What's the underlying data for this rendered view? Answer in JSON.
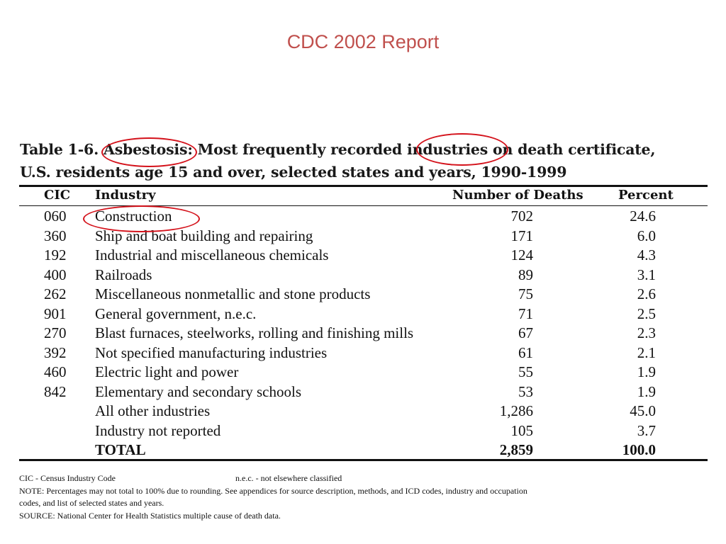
{
  "slide_title": "CDC 2002 Report",
  "table": {
    "caption_line1": "Table 1-6.  Asbestosis:  Most frequently recorded industries on death certificate,",
    "caption_line2": "U.S. residents age 15 and over, selected states and years, 1990-1999",
    "headers": {
      "cic": "CIC",
      "industry": "Industry",
      "deaths": "Number of Deaths",
      "percent": "Percent"
    },
    "rows": [
      {
        "cic": "060",
        "industry": "Construction",
        "deaths": "702",
        "percent": "24.6"
      },
      {
        "cic": "360",
        "industry": "Ship and boat building and repairing",
        "deaths": "171",
        "percent": "6.0"
      },
      {
        "cic": "192",
        "industry": "Industrial and miscellaneous chemicals",
        "deaths": "124",
        "percent": "4.3"
      },
      {
        "cic": "400",
        "industry": "Railroads",
        "deaths": "89",
        "percent": "3.1"
      },
      {
        "cic": "262",
        "industry": "Miscellaneous nonmetallic and stone products",
        "deaths": "75",
        "percent": "2.6"
      },
      {
        "cic": "901",
        "industry": "General government, n.e.c.",
        "deaths": "71",
        "percent": "2.5"
      },
      {
        "cic": "270",
        "industry": "Blast furnaces, steelworks, rolling and finishing mills",
        "deaths": "67",
        "percent": "2.3"
      },
      {
        "cic": "392",
        "industry": "Not specified manufacturing industries",
        "deaths": "61",
        "percent": "2.1"
      },
      {
        "cic": "460",
        "industry": "Electric light and power",
        "deaths": "55",
        "percent": "1.9"
      },
      {
        "cic": "842",
        "industry": "Elementary and secondary schools",
        "deaths": "53",
        "percent": "1.9"
      },
      {
        "cic": "",
        "industry": "All other industries",
        "deaths": "1,286",
        "percent": "45.0"
      },
      {
        "cic": "",
        "industry": "Industry not reported",
        "deaths": "105",
        "percent": "3.7"
      }
    ],
    "total": {
      "label": "TOTAL",
      "deaths": "2,859",
      "percent": "100.0"
    }
  },
  "footnotes": {
    "cic_def": "CIC - Census Industry Code",
    "nec_def": "n.e.c. - not elsewhere classified",
    "note_line1": "NOTE:  Percentages may not total to 100% due to rounding.  See appendices for source description, methods, and ICD codes, industry and occupation",
    "note_line2": "codes, and list of selected states and years.",
    "source": "SOURCE:  National Center for Health Statistics multiple cause of death data."
  },
  "highlight_color": "#d4121b",
  "title_color": "#c0504d"
}
